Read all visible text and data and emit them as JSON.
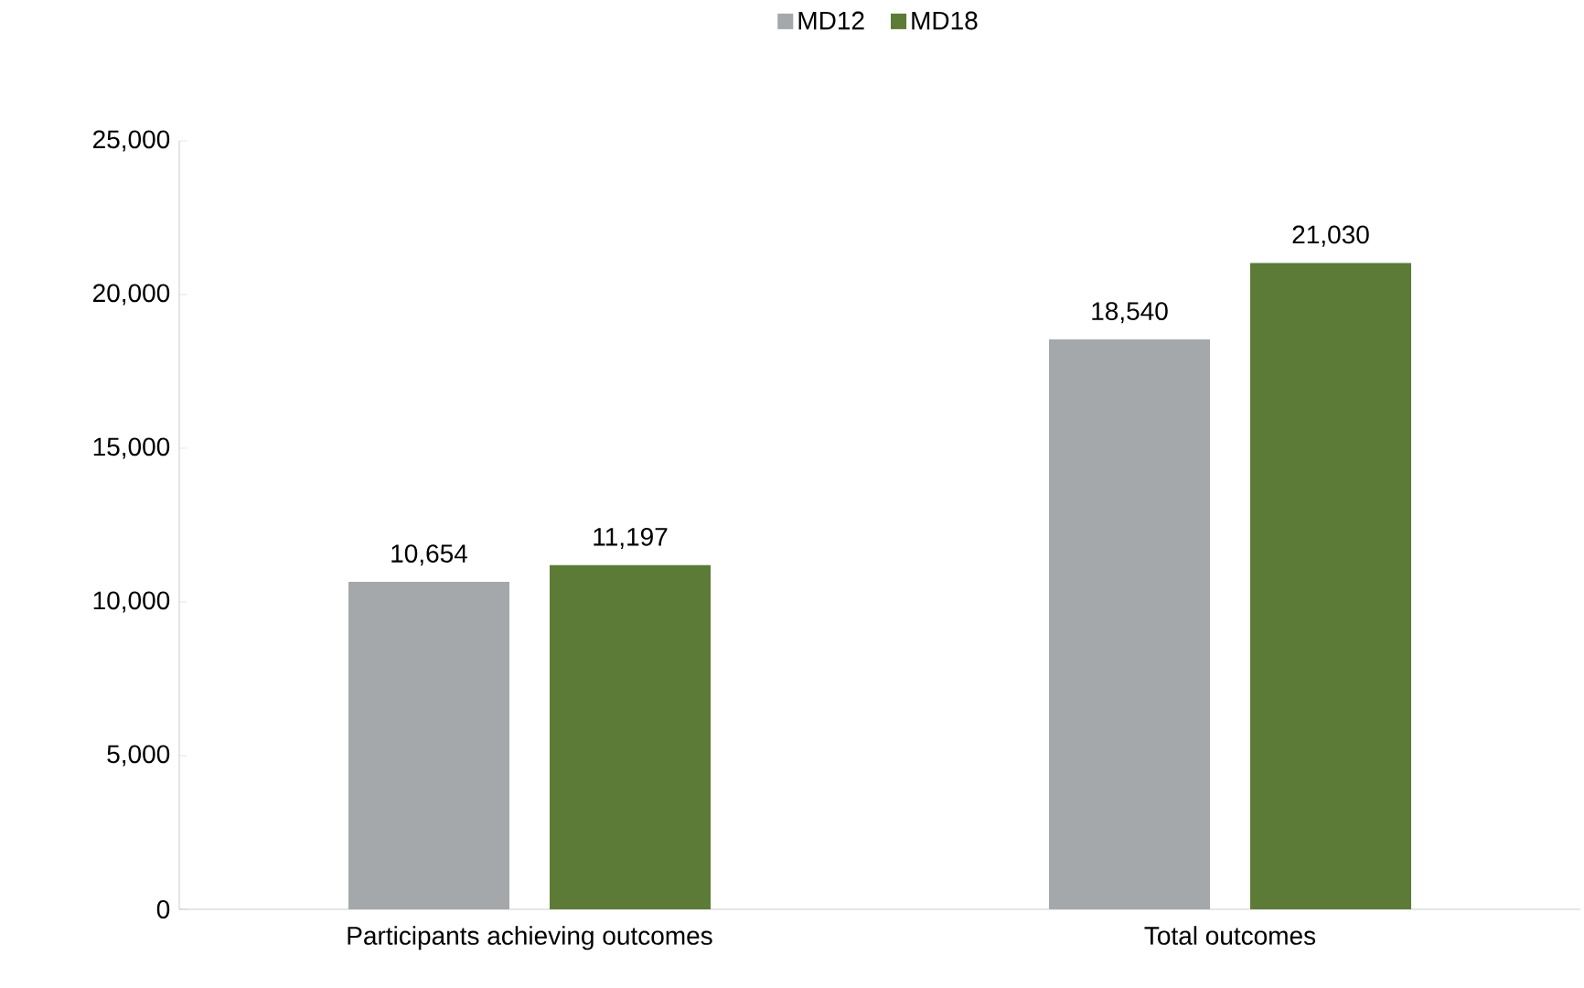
{
  "chart_data": {
    "type": "bar",
    "categories": [
      "Participants achieving outcomes",
      "Total outcomes"
    ],
    "series": [
      {
        "name": "MD12",
        "color": "#a5a8aa",
        "values": [
          10654,
          18540
        ],
        "value_labels": [
          "10,654",
          "18,540"
        ]
      },
      {
        "name": "MD18",
        "color": "#5b7b37",
        "values": [
          11197,
          21030
        ],
        "value_labels": [
          "11,197",
          "21,030"
        ]
      }
    ],
    "ylim": [
      0,
      25000
    ],
    "yticks": [
      {
        "value": 0,
        "label": "0"
      },
      {
        "value": 5000,
        "label": "5,000"
      },
      {
        "value": 10000,
        "label": "10,000"
      },
      {
        "value": 15000,
        "label": "15,000"
      },
      {
        "value": 20000,
        "label": "20,000"
      },
      {
        "value": 25000,
        "label": "25,000"
      }
    ],
    "legend": "top",
    "grid": false
  }
}
